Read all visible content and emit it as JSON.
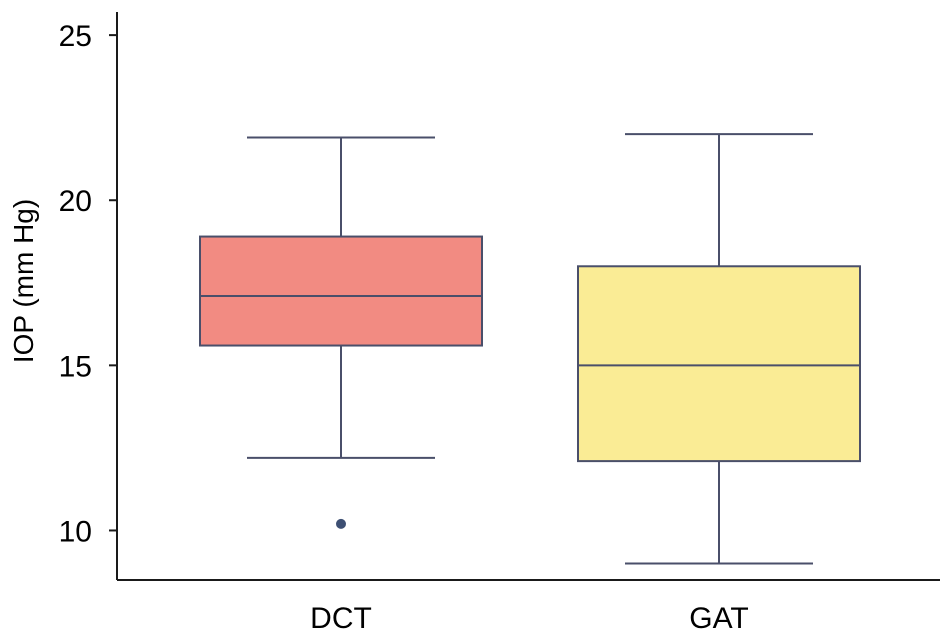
{
  "chart_data": {
    "type": "box",
    "ylabel": "IOP (mm Hg)",
    "xlabel": "",
    "ylim": [
      8.5,
      25.7
    ],
    "yticks": [
      10,
      15,
      20,
      25
    ],
    "grid": false,
    "colors": {
      "axis": "#1a1a1a",
      "box_stroke": "#4a4f6a",
      "outlier": "#3d4f73"
    },
    "categories": [
      "DCT",
      "GAT"
    ],
    "boxes": [
      {
        "category": "DCT",
        "whisker_low": 12.2,
        "q1": 15.6,
        "median": 17.1,
        "q3": 18.9,
        "whisker_high": 21.9,
        "outliers": [
          10.2
        ],
        "color": "#f28b82"
      },
      {
        "category": "GAT",
        "whisker_low": 9.0,
        "q1": 12.1,
        "median": 15.0,
        "q3": 18.0,
        "whisker_high": 22.0,
        "outliers": [],
        "color": "#faec95"
      }
    ]
  }
}
